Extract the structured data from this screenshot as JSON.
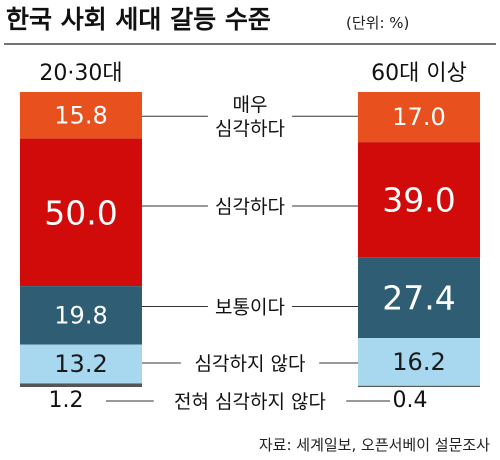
{
  "chart_data": {
    "type": "bar",
    "stacked": true,
    "title": "한국 사회 세대 갈등 수준",
    "unit": "(단위: %)",
    "categories": [
      "20·30대",
      "60대 이상"
    ],
    "series": [
      {
        "name": "매우 심각하다",
        "label_lines": [
          "매우",
          "심각하다"
        ],
        "color": "#e8501e",
        "text_color": "#ffffff",
        "values": [
          15.8,
          17.0
        ]
      },
      {
        "name": "심각하다",
        "label_lines": [
          "심각하다"
        ],
        "color": "#d10a0a",
        "text_color": "#ffffff",
        "values": [
          50.0,
          39.0
        ]
      },
      {
        "name": "보통이다",
        "label_lines": [
          "보통이다"
        ],
        "color": "#2f5d73",
        "text_color": "#ffffff",
        "values": [
          19.8,
          27.4
        ]
      },
      {
        "name": "심각하지 않다",
        "label_lines": [
          "심각하지 않다"
        ],
        "color": "#a7d8f0",
        "text_color": "#1a1a1a",
        "values": [
          13.2,
          16.2
        ]
      },
      {
        "name": "전혀 심각하지 않다",
        "label_lines": [
          "전혀 심각하지 않다"
        ],
        "color": "#555555",
        "text_color": "#1a1a1a",
        "values": [
          1.2,
          0.4
        ]
      }
    ],
    "value_labels": [
      [
        "15.8",
        "50.0",
        "19.8",
        "13.2",
        "1.2"
      ],
      [
        "17.0",
        "39.0",
        "27.4",
        "16.2",
        "0.4"
      ]
    ],
    "source": "자료: 세계일보, 오픈서베이 설문조사"
  }
}
